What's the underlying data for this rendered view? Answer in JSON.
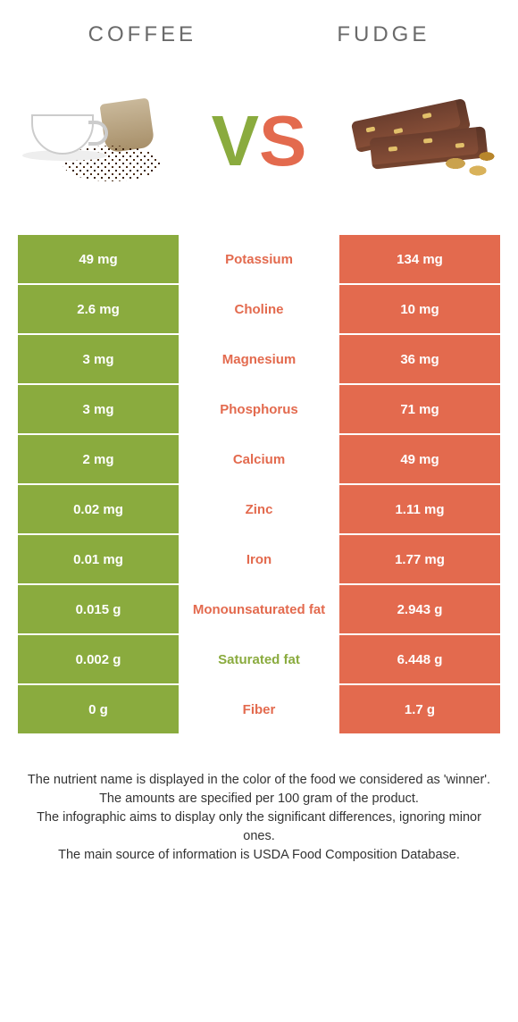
{
  "header": {
    "left_title": "COFFEE",
    "right_title": "FUDGE"
  },
  "vs": {
    "v": "V",
    "s": "S"
  },
  "colors": {
    "left": "#8aab3e",
    "right": "#e36a4e",
    "nutrient_left_winner": "#e36a4e",
    "nutrient_right_winner": "#8aab3e"
  },
  "rows": [
    {
      "left": "49 mg",
      "mid": "Potassium",
      "right": "134 mg",
      "winner": "right"
    },
    {
      "left": "2.6 mg",
      "mid": "Choline",
      "right": "10 mg",
      "winner": "right"
    },
    {
      "left": "3 mg",
      "mid": "Magnesium",
      "right": "36 mg",
      "winner": "right"
    },
    {
      "left": "3 mg",
      "mid": "Phosphorus",
      "right": "71 mg",
      "winner": "right"
    },
    {
      "left": "2 mg",
      "mid": "Calcium",
      "right": "49 mg",
      "winner": "right"
    },
    {
      "left": "0.02 mg",
      "mid": "Zinc",
      "right": "1.11 mg",
      "winner": "right"
    },
    {
      "left": "0.01 mg",
      "mid": "Iron",
      "right": "1.77 mg",
      "winner": "right"
    },
    {
      "left": "0.015 g",
      "mid": "Monounsaturated fat",
      "right": "2.943 g",
      "winner": "right"
    },
    {
      "left": "0.002 g",
      "mid": "Saturated fat",
      "right": "6.448 g",
      "winner": "left"
    },
    {
      "left": "0 g",
      "mid": "Fiber",
      "right": "1.7 g",
      "winner": "right"
    }
  ],
  "footer": {
    "line1": "The nutrient name is displayed in the color of the food we considered as 'winner'.",
    "line2": "The amounts are specified per 100 gram of the product.",
    "line3": "The infographic aims to display only the significant differences, ignoring minor ones.",
    "line4": "The main source of information is USDA Food Composition Database."
  }
}
